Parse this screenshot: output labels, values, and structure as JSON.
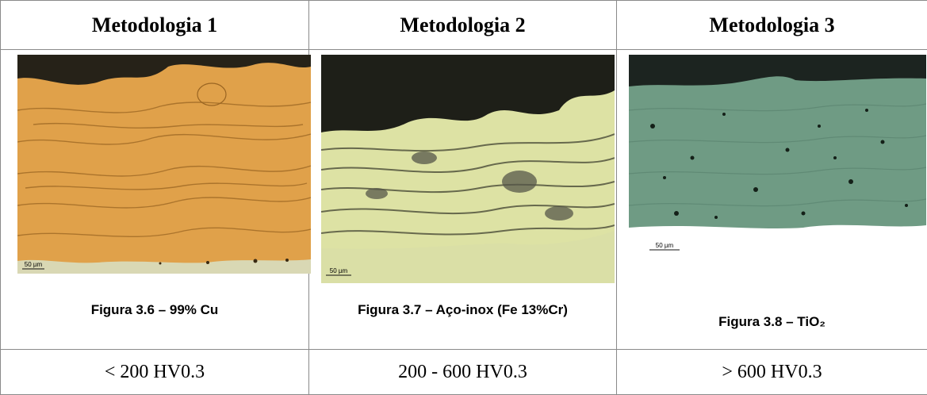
{
  "table": {
    "header": [
      "Metodologia 1",
      "Metodologia 2",
      "Metodologia 3"
    ],
    "figures": [
      {
        "scale_bar": "50 µm",
        "caption": "Figura 3.6 – 99% Cu"
      },
      {
        "scale_bar": "50 µm",
        "caption": "Figura 3.7 – Aço-inox (Fe 13%Cr)"
      },
      {
        "scale_bar": "50 µm",
        "caption": "Figura 3.8 – TiO₂"
      }
    ],
    "hardness": [
      "< 200 HV0.3",
      "200 - 600 HV0.3",
      "> 600 HV0.3"
    ]
  }
}
